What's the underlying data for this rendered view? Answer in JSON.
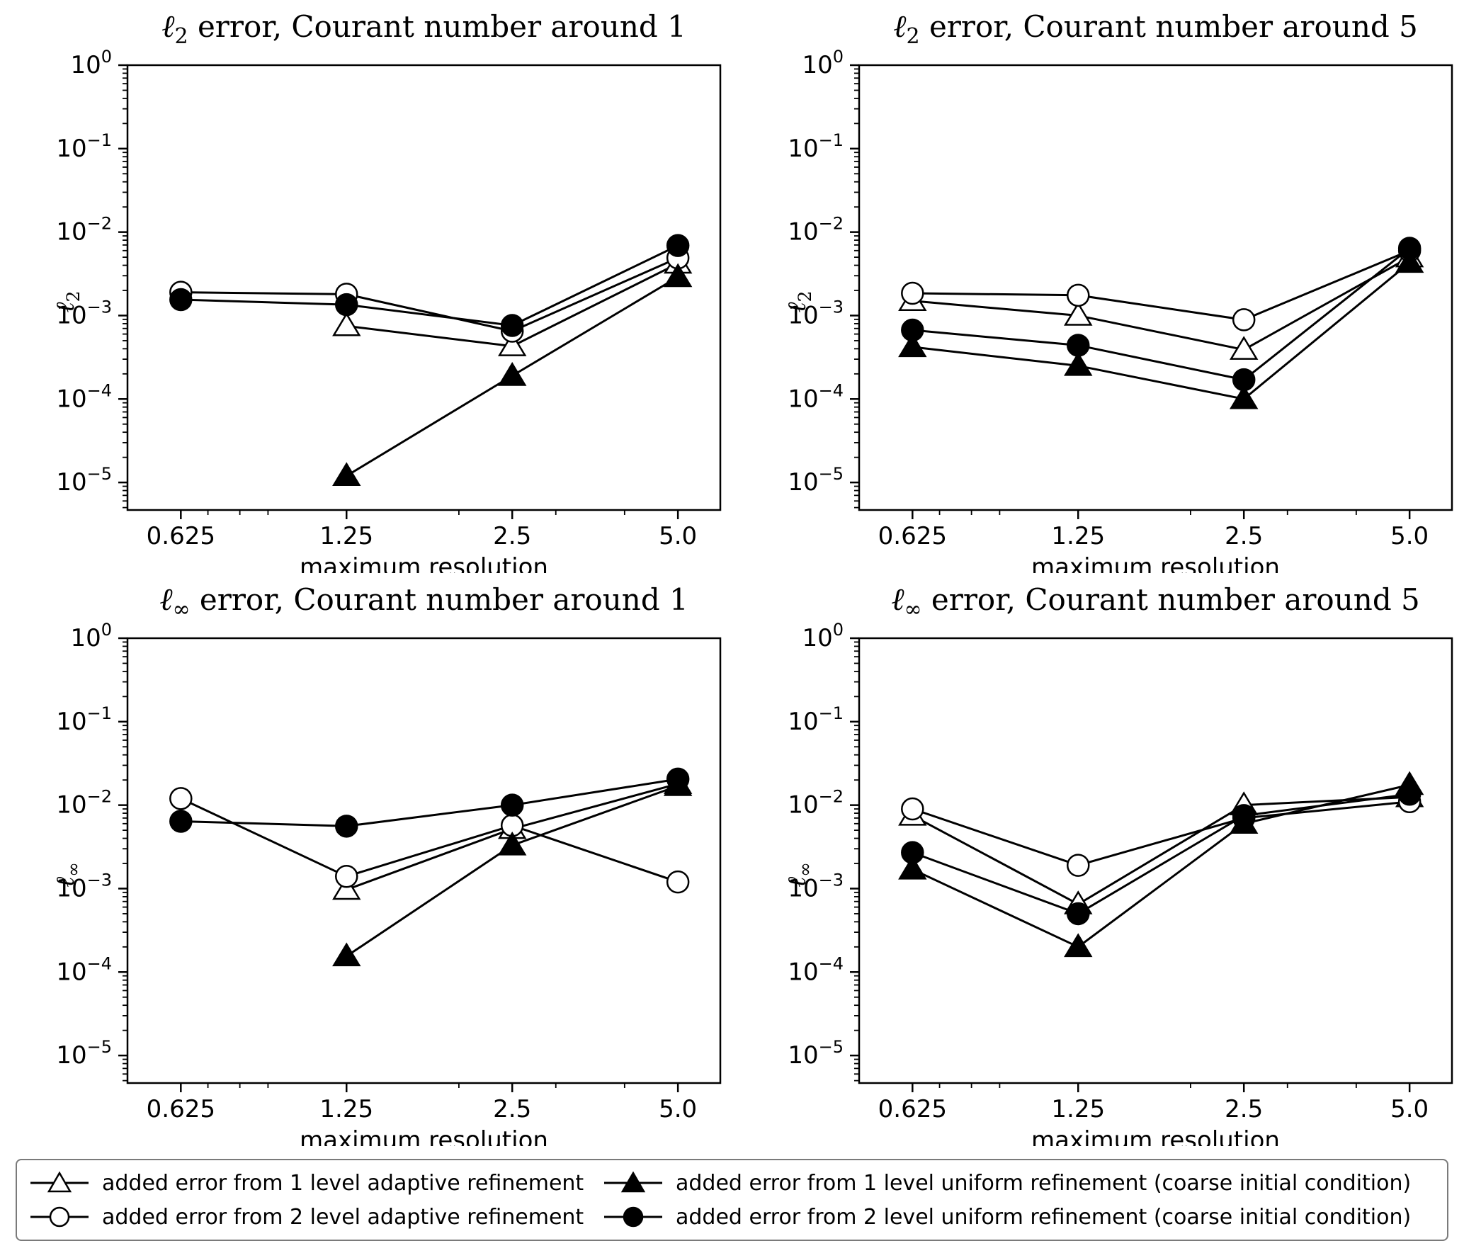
{
  "page": {
    "background": "#ffffff",
    "ink": "#000000"
  },
  "legend": {
    "entries": [
      {
        "marker": "triangle-open",
        "label": "added error from 1 level adaptive refinement"
      },
      {
        "marker": "circle-open",
        "label": "added error from 2 level adaptive refinement"
      },
      {
        "marker": "triangle-filled",
        "label": "added error from 1 level uniform refinement (coarse initial condition)"
      },
      {
        "marker": "circle-filled",
        "label": "added error from 2 level uniform refinement (coarse initial condition)"
      }
    ]
  },
  "chart_data": [
    {
      "type": "line",
      "title_symbol": "ℓ",
      "title_sub": "2",
      "title_rest": " error, Courant number around 1",
      "xlabel": "maximum resolution",
      "ylabel_symbol": "ℓ",
      "ylabel_sub": "2",
      "x_scale": "log",
      "y_scale": "log",
      "xlim": [
        0.5,
        5.97
      ],
      "ylim_exp": [
        -5.33,
        0
      ],
      "x_tick_values": [
        0.625,
        1.25,
        2.5,
        5.0
      ],
      "x_tick_labels": [
        "0.625",
        "1.25",
        "2.5",
        "5.0"
      ],
      "x_minor_ticks": [
        0.7,
        0.8,
        0.9,
        2,
        3,
        4
      ],
      "y_tick_exps": [
        0,
        -1,
        -2,
        -3,
        -4,
        -5
      ],
      "y_tick_exp_labels": [
        "0",
        "−1",
        "−2",
        "−3",
        "−4",
        "−5"
      ],
      "series": [
        {
          "name": "added error from 1 level adaptive refinement",
          "marker": "triangle-open",
          "x": [
            1.25,
            2.5,
            5.0
          ],
          "y": [
            0.00075,
            0.00043,
            0.0042
          ]
        },
        {
          "name": "added error from 2 level adaptive refinement",
          "marker": "circle-open",
          "x": [
            0.625,
            1.25,
            2.5,
            5.0
          ],
          "y": [
            0.0019,
            0.0018,
            0.00065,
            0.0049
          ]
        },
        {
          "name": "added error from 1 level uniform refinement (coarse initial condition)",
          "marker": "triangle-filled",
          "x": [
            1.25,
            2.5,
            5.0
          ],
          "y": [
            1.2e-05,
            0.00019,
            0.0029
          ]
        },
        {
          "name": "added error from 2 level uniform refinement (coarse initial condition)",
          "marker": "circle-filled",
          "x": [
            0.625,
            1.25,
            2.5,
            5.0
          ],
          "y": [
            0.00155,
            0.00135,
            0.00076,
            0.0069
          ]
        }
      ]
    },
    {
      "type": "line",
      "title_symbol": "ℓ",
      "title_sub": "2",
      "title_rest": " error, Courant number around 5",
      "xlabel": "maximum resolution",
      "ylabel_symbol": "ℓ",
      "ylabel_sub": "2",
      "x_scale": "log",
      "y_scale": "log",
      "xlim": [
        0.5,
        5.97
      ],
      "ylim_exp": [
        -5.33,
        0
      ],
      "x_tick_values": [
        0.625,
        1.25,
        2.5,
        5.0
      ],
      "x_tick_labels": [
        "0.625",
        "1.25",
        "2.5",
        "5.0"
      ],
      "x_minor_ticks": [
        0.7,
        0.8,
        0.9,
        2,
        3,
        4
      ],
      "y_tick_exps": [
        0,
        -1,
        -2,
        -3,
        -4,
        -5
      ],
      "y_tick_exp_labels": [
        "0",
        "−1",
        "−2",
        "−3",
        "−4",
        "−5"
      ],
      "series": [
        {
          "name": "added error from 1 level adaptive refinement",
          "marker": "triangle-open",
          "x": [
            0.625,
            1.25,
            2.5,
            5.0
          ],
          "y": [
            0.0015,
            0.001,
            0.00039,
            0.005
          ]
        },
        {
          "name": "added error from 2 level adaptive refinement",
          "marker": "circle-open",
          "x": [
            0.625,
            1.25,
            2.5,
            5.0
          ],
          "y": [
            0.00185,
            0.00175,
            0.00089,
            0.006
          ]
        },
        {
          "name": "added error from 1 level uniform refinement (coarse initial condition)",
          "marker": "triangle-filled",
          "x": [
            0.625,
            1.25,
            2.5,
            5.0
          ],
          "y": [
            0.00042,
            0.00025,
            0.0001,
            0.0043
          ]
        },
        {
          "name": "added error from 2 level uniform refinement (coarse initial condition)",
          "marker": "circle-filled",
          "x": [
            0.625,
            1.25,
            2.5,
            5.0
          ],
          "y": [
            0.00067,
            0.00044,
            0.00017,
            0.0064
          ]
        }
      ]
    },
    {
      "type": "line",
      "title_symbol": "ℓ",
      "title_sub": "∞",
      "title_rest": " error, Courant number around 1",
      "xlabel": "maximum resolution",
      "ylabel_symbol": "ℓ",
      "ylabel_sub": "∞",
      "x_scale": "log",
      "y_scale": "log",
      "xlim": [
        0.5,
        5.97
      ],
      "ylim_exp": [
        -5.33,
        0
      ],
      "x_tick_values": [
        0.625,
        1.25,
        2.5,
        5.0
      ],
      "x_tick_labels": [
        "0.625",
        "1.25",
        "2.5",
        "5.0"
      ],
      "x_minor_ticks": [
        0.7,
        0.8,
        0.9,
        2,
        3,
        4
      ],
      "y_tick_exps": [
        0,
        -1,
        -2,
        -3,
        -4,
        -5
      ],
      "y_tick_exp_labels": [
        "0",
        "−1",
        "−2",
        "−3",
        "−4",
        "−5"
      ],
      "series": [
        {
          "name": "added error from 1 level adaptive refinement",
          "marker": "triangle-open",
          "x": [
            1.25,
            2.5,
            5.0
          ],
          "y": [
            0.00097,
            0.0052,
            0.018
          ]
        },
        {
          "name": "added error from 2 level adaptive refinement",
          "marker": "circle-open",
          "x": [
            0.625,
            1.25,
            2.5,
            5.0
          ],
          "y": [
            0.012,
            0.0014,
            0.0057,
            0.0012
          ]
        },
        {
          "name": "added error from 1 level uniform refinement (coarse initial condition)",
          "marker": "triangle-filled",
          "x": [
            1.25,
            2.5,
            5.0
          ],
          "y": [
            0.000155,
            0.0033,
            0.017
          ]
        },
        {
          "name": "added error from 2 level uniform refinement (coarse initial condition)",
          "marker": "circle-filled",
          "x": [
            0.625,
            1.25,
            2.5,
            5.0
          ],
          "y": [
            0.0064,
            0.0056,
            0.01,
            0.0205
          ]
        }
      ]
    },
    {
      "type": "line",
      "title_symbol": "ℓ",
      "title_sub": "∞",
      "title_rest": " error, Courant number around 5",
      "xlabel": "maximum resolution",
      "ylabel_symbol": "ℓ",
      "ylabel_sub": "∞",
      "x_scale": "log",
      "y_scale": "log",
      "xlim": [
        0.5,
        5.97
      ],
      "ylim_exp": [
        -5.33,
        0
      ],
      "x_tick_values": [
        0.625,
        1.25,
        2.5,
        5.0
      ],
      "x_tick_labels": [
        "0.625",
        "1.25",
        "2.5",
        "5.0"
      ],
      "x_minor_ticks": [
        0.7,
        0.8,
        0.9,
        2,
        3,
        4
      ],
      "y_tick_exps": [
        0,
        -1,
        -2,
        -3,
        -4,
        -5
      ],
      "y_tick_exp_labels": [
        "0",
        "−1",
        "−2",
        "−3",
        "−4",
        "−5"
      ],
      "series": [
        {
          "name": "added error from 1 level adaptive refinement",
          "marker": "triangle-open",
          "x": [
            0.625,
            1.25,
            2.5,
            5.0
          ],
          "y": [
            0.0075,
            0.00065,
            0.01,
            0.0125
          ]
        },
        {
          "name": "added error from 2 level adaptive refinement",
          "marker": "circle-open",
          "x": [
            0.625,
            1.25,
            2.5,
            5.0
          ],
          "y": [
            0.009,
            0.0019,
            0.007,
            0.011
          ]
        },
        {
          "name": "added error from 1 level uniform refinement (coarse initial condition)",
          "marker": "triangle-filled",
          "x": [
            0.625,
            1.25,
            2.5,
            5.0
          ],
          "y": [
            0.0017,
            0.0002,
            0.006,
            0.0175
          ]
        },
        {
          "name": "added error from 2 level uniform refinement (coarse initial condition)",
          "marker": "circle-filled",
          "x": [
            0.625,
            1.25,
            2.5,
            5.0
          ],
          "y": [
            0.0027,
            0.0005,
            0.0075,
            0.0135
          ]
        }
      ]
    }
  ]
}
